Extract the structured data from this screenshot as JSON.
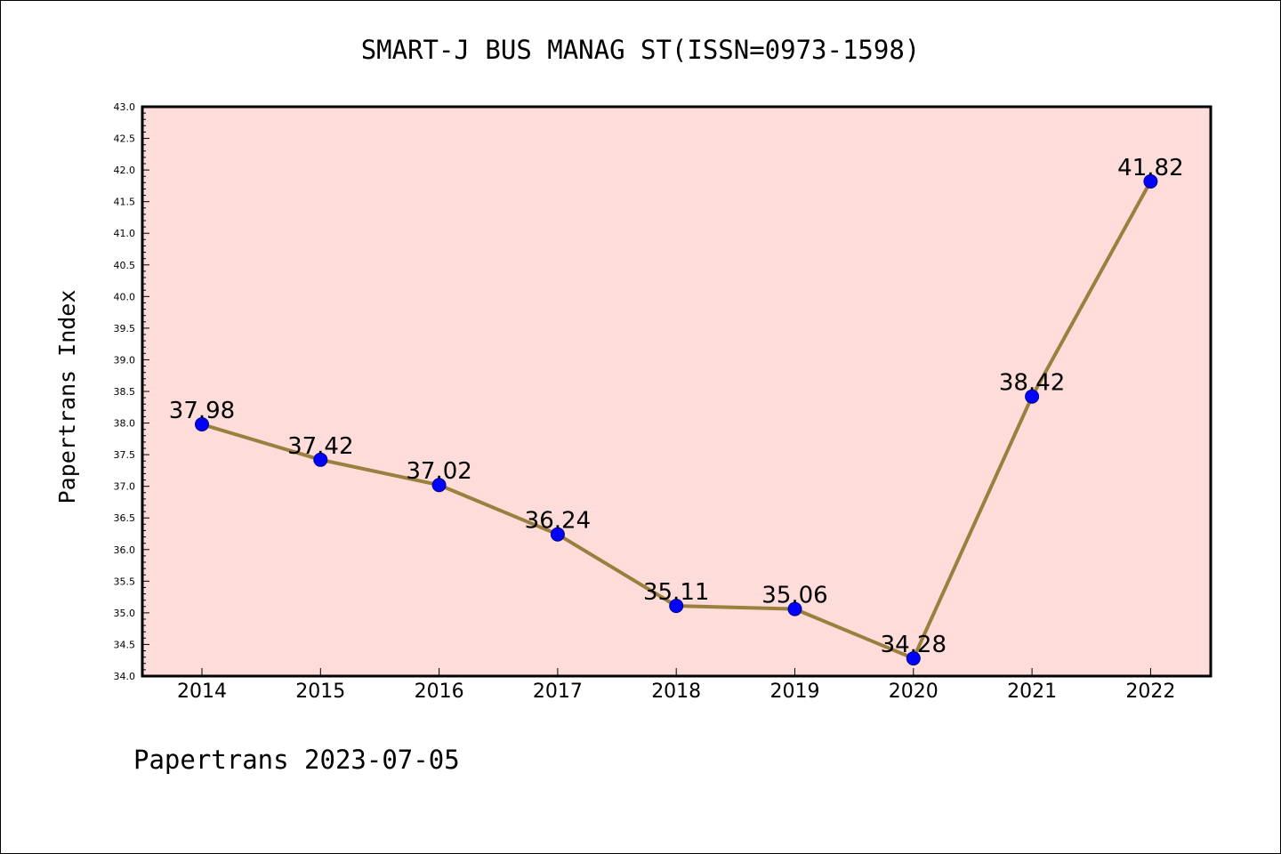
{
  "chart_data": {
    "type": "line",
    "title": "SMART-J BUS MANAG ST(ISSN=0973-1598)",
    "xlabel": "",
    "ylabel": "Papertrans Index",
    "categories": [
      "2014",
      "2015",
      "2016",
      "2017",
      "2018",
      "2019",
      "2020",
      "2021",
      "2022"
    ],
    "series": [
      {
        "values": [
          37.98,
          37.42,
          37.02,
          36.24,
          35.11,
          35.06,
          34.28,
          38.42,
          41.82
        ],
        "labels": [
          "37.98",
          "37.42",
          "37.02",
          "36.24",
          "35.11",
          "35.06",
          "34.28",
          "38.42",
          "41.82"
        ]
      }
    ],
    "ylim": [
      34.0,
      43.0
    ],
    "yticks": [
      "34.0",
      "34.5",
      "35.0",
      "35.5",
      "36.0",
      "36.5",
      "37.0",
      "37.5",
      "38.0",
      "38.5",
      "39.0",
      "39.5",
      "40.0",
      "40.5",
      "41.0",
      "41.5",
      "42.0",
      "42.5",
      "43.0"
    ],
    "grid": false,
    "footer": "Papertrans 2023-07-05",
    "colors": {
      "plot_background": "#fddcda",
      "line": "#9a7f3f",
      "marker": "#0000ff",
      "axis": "#000000"
    }
  }
}
